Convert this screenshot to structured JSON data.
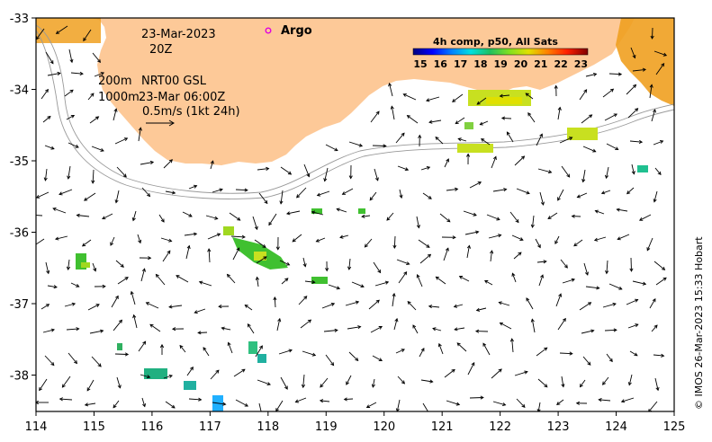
{
  "header": {
    "date": "23-Mar-2023",
    "time": "20Z",
    "depth_line1": "200m",
    "product": "NRT00 GSL",
    "depth_line2": "1000m",
    "product_time": "23-Mar 06:00Z",
    "scale_label": "0.5m/s (1kt 24h)"
  },
  "legend": {
    "argo_label": "Argo",
    "argo_color": "#e000e0"
  },
  "colorbar": {
    "title": "4h comp, p50, All Sats",
    "ticks": [
      "15",
      "16",
      "17",
      "18",
      "19",
      "20",
      "21",
      "22",
      "23"
    ],
    "colors": [
      "#00007f",
      "#0000ff",
      "#0080ff",
      "#00e0e0",
      "#20c060",
      "#80e020",
      "#e0e000",
      "#ff8000",
      "#ff2000",
      "#800000"
    ]
  },
  "credit": "© IMOS 26-Mar-2023 15:33 Hobart",
  "axes": {
    "x_ticks": [
      "114",
      "115",
      "116",
      "117",
      "118",
      "119",
      "120",
      "121",
      "122",
      "123",
      "124",
      "125"
    ],
    "y_ticks": [
      "-33",
      "-34",
      "-35",
      "-36",
      "-37",
      "-38"
    ]
  },
  "colors": {
    "land": "#fdc998",
    "sea": "#ffffff",
    "isobath": "#999999"
  }
}
